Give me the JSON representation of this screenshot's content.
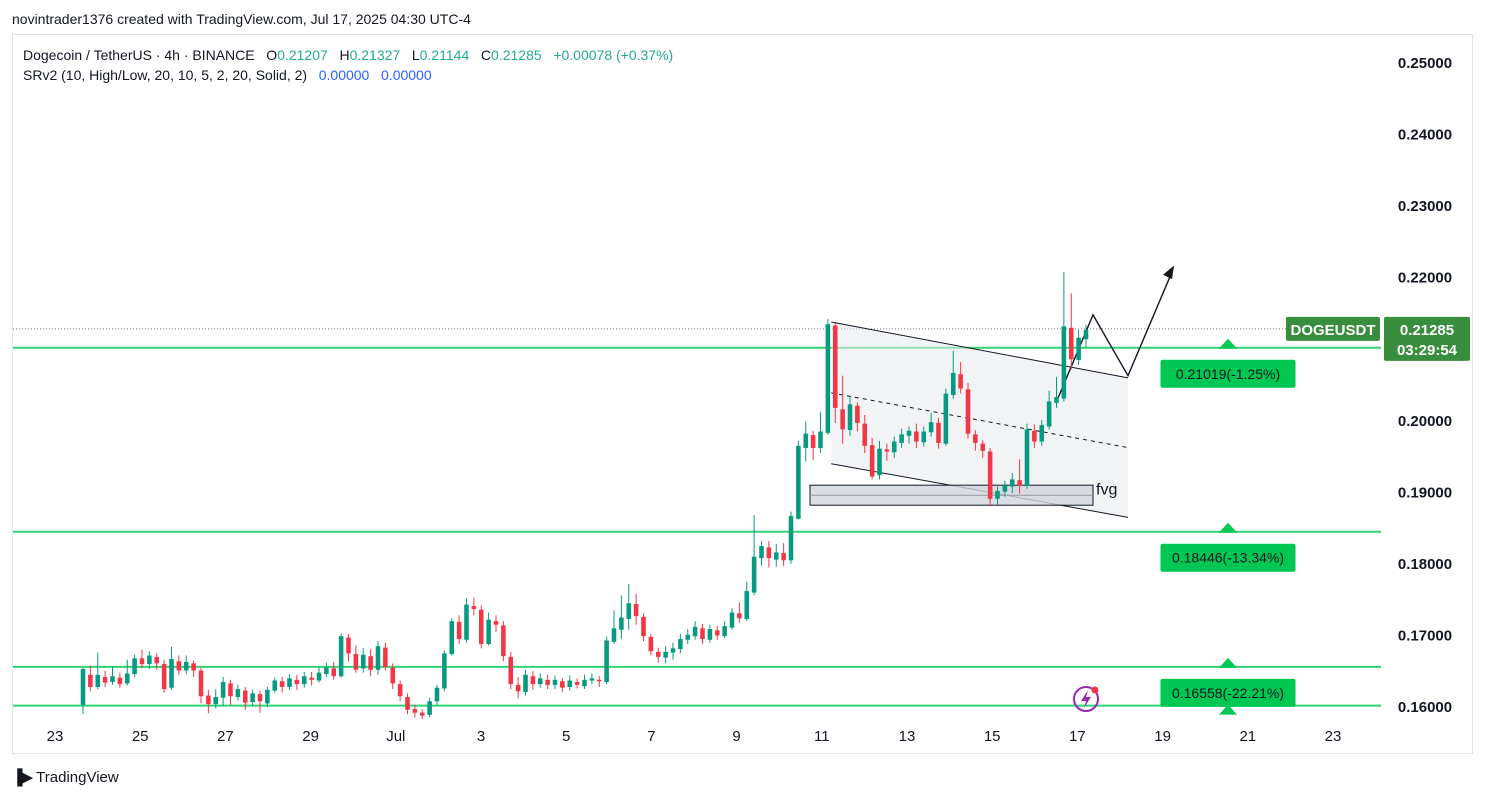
{
  "credit": "novintrader1376 created with TradingView.com, Jul 17, 2025 04:30 UTC-4",
  "legend": {
    "symbol": "Dogecoin / TetherUS · 4h · BINANCE",
    "o_label": "O",
    "o": "0.21207",
    "h_label": "H",
    "h": "0.21327",
    "l_label": "L",
    "l": "0.21144",
    "c_label": "C",
    "c": "0.21285",
    "change": "+0.00078 (+0.37%)",
    "indicator": "SRv2 (10, High/Low, 20, 10, 5, 2, 20, Solid, 2)",
    "ind_v1": "0.00000",
    "ind_v2": "0.00000"
  },
  "footer_logo": "TradingView",
  "colors": {
    "up": "#089981",
    "down": "#f23645",
    "level": "#2ed573",
    "badge": "#00c853",
    "price_badge": "#388e3c"
  },
  "chart_data": {
    "type": "candlestick",
    "y_ticks": [
      "0.25000",
      "0.24000",
      "0.23000",
      "0.22000",
      "0.21000",
      "0.20000",
      "0.19000",
      "0.18000",
      "0.17000",
      "0.16000"
    ],
    "ylim": [
      0.1588,
      0.2532
    ],
    "x_ticks": [
      "23",
      "25",
      "27",
      "29",
      "Jul",
      "3",
      "5",
      "7",
      "9",
      "11",
      "13",
      "15",
      "17",
      "19",
      "21",
      "23"
    ],
    "xlim_days": [
      22.2,
      23.9
    ],
    "symbol_label": "DOGEUSDT",
    "last_price": "0.21285",
    "countdown": "03:29:54",
    "levels": [
      {
        "price": 0.2102,
        "label": "0.21019(-1.25%)"
      },
      {
        "price": 0.1845,
        "label": "0.18446(-13.34%)"
      },
      {
        "price": 0.1656,
        "label": "0.16558(-22.21%)"
      },
      {
        "price": 0.1602,
        "label": ""
      }
    ],
    "annotation": "fvg",
    "candles": [
      [
        0.1603,
        0.1653,
        0.159,
        0.1655
      ],
      [
        0.1645,
        0.1628,
        0.1622,
        0.1658
      ],
      [
        0.1628,
        0.1645,
        0.1625,
        0.1676
      ],
      [
        0.1642,
        0.1634,
        0.1628,
        0.1651
      ],
      [
        0.1635,
        0.1643,
        0.1631,
        0.1657
      ],
      [
        0.1641,
        0.1632,
        0.1627,
        0.1648
      ],
      [
        0.1633,
        0.1647,
        0.163,
        0.1666
      ],
      [
        0.1646,
        0.1668,
        0.1642,
        0.1673
      ],
      [
        0.1668,
        0.166,
        0.1654,
        0.168
      ],
      [
        0.166,
        0.1672,
        0.1653,
        0.1678
      ],
      [
        0.167,
        0.1661,
        0.1652,
        0.1675
      ],
      [
        0.166,
        0.1625,
        0.162,
        0.1666
      ],
      [
        0.1627,
        0.1667,
        0.1624,
        0.1684
      ],
      [
        0.1664,
        0.1651,
        0.1645,
        0.1672
      ],
      [
        0.1651,
        0.1663,
        0.1646,
        0.1672
      ],
      [
        0.1661,
        0.1651,
        0.1642,
        0.1665
      ],
      [
        0.1651,
        0.1615,
        0.1605,
        0.1655
      ],
      [
        0.1616,
        0.1604,
        0.1591,
        0.1624
      ],
      [
        0.1604,
        0.1614,
        0.1598,
        0.1625
      ],
      [
        0.1613,
        0.1635,
        0.1601,
        0.1642
      ],
      [
        0.1633,
        0.1615,
        0.1603,
        0.1638
      ],
      [
        0.1614,
        0.1625,
        0.1609,
        0.1631
      ],
      [
        0.1623,
        0.1606,
        0.1596,
        0.1628
      ],
      [
        0.1607,
        0.1619,
        0.1601,
        0.1624
      ],
      [
        0.1618,
        0.1608,
        0.1592,
        0.1623
      ],
      [
        0.1605,
        0.1624,
        0.16,
        0.1628
      ],
      [
        0.1623,
        0.1637,
        0.162,
        0.1641
      ],
      [
        0.1636,
        0.1628,
        0.162,
        0.1642
      ],
      [
        0.1628,
        0.164,
        0.1624,
        0.1646
      ],
      [
        0.1638,
        0.1632,
        0.1624,
        0.1645
      ],
      [
        0.1632,
        0.1643,
        0.1627,
        0.1649
      ],
      [
        0.1641,
        0.1638,
        0.163,
        0.1649
      ],
      [
        0.1637,
        0.1648,
        0.1634,
        0.1655
      ],
      [
        0.1646,
        0.1656,
        0.1642,
        0.1662
      ],
      [
        0.1654,
        0.1643,
        0.1638,
        0.1663
      ],
      [
        0.1643,
        0.1699,
        0.1641,
        0.1703
      ],
      [
        0.1697,
        0.1675,
        0.1664,
        0.1702
      ],
      [
        0.1674,
        0.1652,
        0.1648,
        0.1686
      ],
      [
        0.1654,
        0.1673,
        0.1648,
        0.1682
      ],
      [
        0.1671,
        0.1652,
        0.1643,
        0.1681
      ],
      [
        0.1652,
        0.1685,
        0.1645,
        0.1692
      ],
      [
        0.1683,
        0.1656,
        0.1651,
        0.169
      ],
      [
        0.1655,
        0.1633,
        0.1625,
        0.1661
      ],
      [
        0.1632,
        0.1615,
        0.1608,
        0.1637
      ],
      [
        0.1614,
        0.1596,
        0.159,
        0.1619
      ],
      [
        0.1597,
        0.1592,
        0.1585,
        0.1603
      ],
      [
        0.1592,
        0.1588,
        0.1583,
        0.1597
      ],
      [
        0.1589,
        0.1608,
        0.1586,
        0.1613
      ],
      [
        0.1608,
        0.1627,
        0.1603,
        0.1631
      ],
      [
        0.1626,
        0.1675,
        0.1622,
        0.1679
      ],
      [
        0.1674,
        0.172,
        0.1672,
        0.1724
      ],
      [
        0.1719,
        0.1695,
        0.1688,
        0.1728
      ],
      [
        0.1694,
        0.1743,
        0.169,
        0.1752
      ],
      [
        0.1741,
        0.1737,
        0.1728,
        0.1753
      ],
      [
        0.1736,
        0.1688,
        0.1682,
        0.1742
      ],
      [
        0.1688,
        0.1722,
        0.1686,
        0.1732
      ],
      [
        0.172,
        0.1715,
        0.1705,
        0.1728
      ],
      [
        0.1714,
        0.1671,
        0.1664,
        0.172
      ],
      [
        0.167,
        0.1632,
        0.1625,
        0.1677
      ],
      [
        0.1631,
        0.1622,
        0.1612,
        0.1642
      ],
      [
        0.1621,
        0.1645,
        0.1616,
        0.1652
      ],
      [
        0.1643,
        0.1632,
        0.1624,
        0.165
      ],
      [
        0.1632,
        0.164,
        0.1627,
        0.1647
      ],
      [
        0.1638,
        0.1631,
        0.1625,
        0.1645
      ],
      [
        0.1631,
        0.1638,
        0.1625,
        0.1644
      ],
      [
        0.1636,
        0.1627,
        0.1621,
        0.164
      ],
      [
        0.1628,
        0.1637,
        0.1623,
        0.1644
      ],
      [
        0.1635,
        0.1631,
        0.1626,
        0.164
      ],
      [
        0.1629,
        0.1638,
        0.1625,
        0.1645
      ],
      [
        0.1637,
        0.164,
        0.1632,
        0.1647
      ],
      [
        0.1638,
        0.1636,
        0.1628,
        0.1643
      ],
      [
        0.1635,
        0.1693,
        0.1632,
        0.1698
      ],
      [
        0.1691,
        0.171,
        0.1688,
        0.1735
      ],
      [
        0.1708,
        0.1725,
        0.1695,
        0.1756
      ],
      [
        0.1723,
        0.1745,
        0.1708,
        0.1772
      ],
      [
        0.1744,
        0.1727,
        0.1715,
        0.1758
      ],
      [
        0.1726,
        0.1699,
        0.1692,
        0.1731
      ],
      [
        0.1698,
        0.1678,
        0.1672,
        0.1702
      ],
      [
        0.1677,
        0.167,
        0.1662,
        0.1683
      ],
      [
        0.1669,
        0.1677,
        0.1661,
        0.1685
      ],
      [
        0.1676,
        0.1682,
        0.1666,
        0.169
      ],
      [
        0.1681,
        0.1695,
        0.1675,
        0.1702
      ],
      [
        0.1694,
        0.1701,
        0.1688,
        0.1709
      ],
      [
        0.1699,
        0.1712,
        0.1694,
        0.172
      ],
      [
        0.171,
        0.1695,
        0.1688,
        0.1716
      ],
      [
        0.1694,
        0.1709,
        0.169,
        0.1715
      ],
      [
        0.1707,
        0.17,
        0.1694,
        0.1713
      ],
      [
        0.1699,
        0.1713,
        0.1696,
        0.172
      ],
      [
        0.1711,
        0.1732,
        0.1708,
        0.1738
      ],
      [
        0.1731,
        0.1724,
        0.1718,
        0.1746
      ],
      [
        0.1723,
        0.1762,
        0.172,
        0.1775
      ],
      [
        0.176,
        0.181,
        0.1756,
        0.1868
      ],
      [
        0.1808,
        0.1825,
        0.1798,
        0.1832
      ],
      [
        0.1823,
        0.1808,
        0.1795,
        0.1832
      ],
      [
        0.1806,
        0.1816,
        0.1796,
        0.1828
      ],
      [
        0.1815,
        0.1805,
        0.1797,
        0.1829
      ],
      [
        0.1805,
        0.1867,
        0.18,
        0.1873
      ],
      [
        0.1863,
        0.1965,
        0.1862,
        0.1972
      ],
      [
        0.1962,
        0.1982,
        0.1943,
        0.1999
      ],
      [
        0.198,
        0.1962,
        0.1945,
        0.1986
      ],
      [
        0.1962,
        0.1985,
        0.1955,
        0.2012
      ],
      [
        0.1983,
        0.2135,
        0.198,
        0.2142
      ],
      [
        0.2133,
        0.2018,
        0.1997,
        0.2136
      ],
      [
        0.2016,
        0.1988,
        0.1968,
        0.2063
      ],
      [
        0.1987,
        0.2023,
        0.1979,
        0.2034
      ],
      [
        0.2021,
        0.1997,
        0.1985,
        0.2026
      ],
      [
        0.1996,
        0.1965,
        0.1955,
        0.2008
      ],
      [
        0.1966,
        0.1922,
        0.1918,
        0.1976
      ],
      [
        0.1924,
        0.1961,
        0.1918,
        0.1972
      ],
      [
        0.196,
        0.1957,
        0.1944,
        0.1968
      ],
      [
        0.1956,
        0.1971,
        0.1948,
        0.1978
      ],
      [
        0.1969,
        0.1981,
        0.1962,
        0.1989
      ],
      [
        0.1979,
        0.1986,
        0.1968,
        0.1992
      ],
      [
        0.1985,
        0.1971,
        0.1962,
        0.1996
      ],
      [
        0.197,
        0.1985,
        0.1964,
        0.1992
      ],
      [
        0.1984,
        0.1998,
        0.1978,
        0.2011
      ],
      [
        0.1997,
        0.1969,
        0.1961,
        0.2004
      ],
      [
        0.1968,
        0.2038,
        0.1965,
        0.2045
      ],
      [
        0.2036,
        0.2067,
        0.2031,
        0.2098
      ],
      [
        0.2065,
        0.2045,
        0.2038,
        0.2082
      ],
      [
        0.2044,
        0.1982,
        0.1975,
        0.2053
      ],
      [
        0.1981,
        0.1969,
        0.1958,
        0.1987
      ],
      [
        0.1968,
        0.1958,
        0.1948,
        0.1973
      ],
      [
        0.1957,
        0.1891,
        0.1881,
        0.1962
      ],
      [
        0.1891,
        0.1902,
        0.1883,
        0.1908
      ],
      [
        0.1901,
        0.191,
        0.1894,
        0.1916
      ],
      [
        0.1908,
        0.1918,
        0.1899,
        0.1927
      ],
      [
        0.1917,
        0.1909,
        0.1898,
        0.1946
      ],
      [
        0.1909,
        0.1988,
        0.1905,
        0.1996
      ],
      [
        0.1986,
        0.1971,
        0.1962,
        0.1995
      ],
      [
        0.1971,
        0.1994,
        0.1965,
        0.2001
      ],
      [
        0.1992,
        0.2027,
        0.1988,
        0.2042
      ],
      [
        0.2025,
        0.2033,
        0.2018,
        0.2061
      ],
      [
        0.2031,
        0.2132,
        0.2027,
        0.2208
      ],
      [
        0.213,
        0.2086,
        0.2072,
        0.2178
      ],
      [
        0.2085,
        0.2116,
        0.2078,
        0.2127
      ],
      [
        0.2114,
        0.2127,
        0.2103,
        0.2134
      ]
    ]
  }
}
